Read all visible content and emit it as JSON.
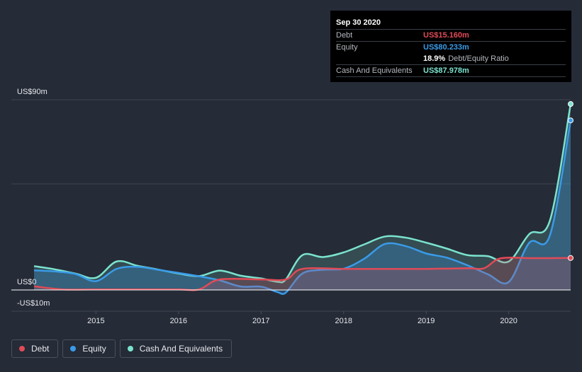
{
  "chart_data": {
    "type": "area",
    "y_axis": {
      "top_label": "US$90m",
      "zero_label": "US$0",
      "bottom_label": "-US$10m",
      "ylim": [
        -10,
        90
      ]
    },
    "x_ticks": [
      "2015",
      "2016",
      "2017",
      "2018",
      "2019",
      "2020"
    ],
    "x_domain": [
      2014.25,
      2020.75
    ],
    "series": [
      {
        "name": "Debt",
        "color": "#e04b57",
        "points": [
          [
            2014.25,
            1.8
          ],
          [
            2014.6,
            0.3
          ],
          [
            2015.0,
            0.3
          ],
          [
            2015.5,
            0.3
          ],
          [
            2016.0,
            0.3
          ],
          [
            2016.25,
            0.3
          ],
          [
            2016.5,
            5.0
          ],
          [
            2017.0,
            5.0
          ],
          [
            2017.3,
            5.0
          ],
          [
            2017.5,
            10.0
          ],
          [
            2018.0,
            10.0
          ],
          [
            2018.5,
            10.0
          ],
          [
            2019.0,
            10.0
          ],
          [
            2019.5,
            10.3
          ],
          [
            2019.7,
            10.3
          ],
          [
            2019.9,
            15.0
          ],
          [
            2020.25,
            15.1
          ],
          [
            2020.5,
            15.1
          ],
          [
            2020.75,
            15.16
          ]
        ]
      },
      {
        "name": "Equity",
        "color": "#3a9be8",
        "points": [
          [
            2014.25,
            9.3
          ],
          [
            2014.5,
            8.8
          ],
          [
            2014.75,
            7.6
          ],
          [
            2015.0,
            4.2
          ],
          [
            2015.25,
            10.0
          ],
          [
            2015.5,
            11.0
          ],
          [
            2015.75,
            9.6
          ],
          [
            2016.0,
            8.1
          ],
          [
            2016.25,
            6.5
          ],
          [
            2016.5,
            4.6
          ],
          [
            2016.75,
            1.7
          ],
          [
            2017.0,
            1.6
          ],
          [
            2017.2,
            -1.0
          ],
          [
            2017.3,
            -1.2
          ],
          [
            2017.5,
            7.8
          ],
          [
            2017.75,
            9.6
          ],
          [
            2018.0,
            10.1
          ],
          [
            2018.25,
            14.8
          ],
          [
            2018.5,
            21.8
          ],
          [
            2018.75,
            20.8
          ],
          [
            2019.0,
            17.3
          ],
          [
            2019.25,
            15.3
          ],
          [
            2019.5,
            11.7
          ],
          [
            2019.75,
            7.4
          ],
          [
            2020.0,
            3.8
          ],
          [
            2020.25,
            22.4
          ],
          [
            2020.5,
            26.0
          ],
          [
            2020.75,
            80.233
          ]
        ]
      },
      {
        "name": "Cash And Equivalents",
        "color": "#7be3cf",
        "points": [
          [
            2014.25,
            11.3
          ],
          [
            2014.5,
            9.8
          ],
          [
            2014.75,
            7.8
          ],
          [
            2015.0,
            5.8
          ],
          [
            2015.25,
            13.5
          ],
          [
            2015.5,
            11.5
          ],
          [
            2015.75,
            9.7
          ],
          [
            2016.0,
            7.8
          ],
          [
            2016.25,
            6.6
          ],
          [
            2016.5,
            9.2
          ],
          [
            2016.75,
            6.8
          ],
          [
            2017.0,
            5.5
          ],
          [
            2017.2,
            3.9
          ],
          [
            2017.3,
            5.0
          ],
          [
            2017.5,
            16.5
          ],
          [
            2017.75,
            15.6
          ],
          [
            2018.0,
            17.8
          ],
          [
            2018.25,
            21.6
          ],
          [
            2018.5,
            25.3
          ],
          [
            2018.75,
            24.8
          ],
          [
            2019.0,
            22.4
          ],
          [
            2019.25,
            19.6
          ],
          [
            2019.5,
            16.5
          ],
          [
            2019.75,
            16.0
          ],
          [
            2020.0,
            13.5
          ],
          [
            2020.25,
            26.5
          ],
          [
            2020.5,
            33.0
          ],
          [
            2020.75,
            87.978
          ]
        ]
      }
    ],
    "tooltip": {
      "date": "Sep 30 2020",
      "debt_label": "Debt",
      "debt_value": "US$15.160m",
      "equity_label": "Equity",
      "equity_value": "US$80.233m",
      "ratio_value": "18.9%",
      "ratio_label": "Debt/Equity Ratio",
      "cash_label": "Cash And Equivalents",
      "cash_value": "US$87.978m"
    },
    "legend": [
      "Debt",
      "Equity",
      "Cash And Equivalents"
    ]
  }
}
